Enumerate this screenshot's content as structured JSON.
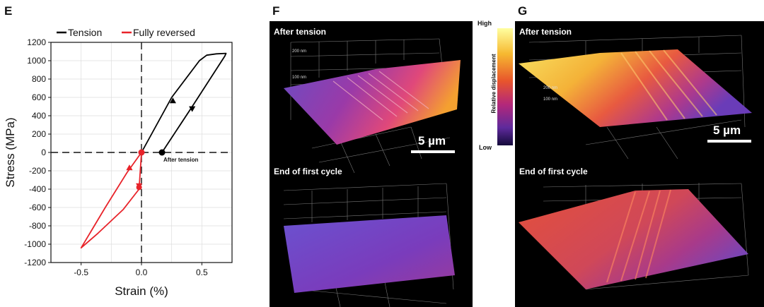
{
  "panels": {
    "E": {
      "label": "E",
      "chart_data": {
        "type": "line",
        "xlabel": "Strain (%)",
        "ylabel": "Stress (MPa)",
        "xlim": [
          -0.75,
          0.75
        ],
        "ylim": [
          -1200,
          1200
        ],
        "x_ticks": [
          -0.5,
          0.0,
          0.5
        ],
        "x_tick_labels": [
          "-0.5",
          "0.0",
          "0.5"
        ],
        "y_ticks": [
          -1200,
          -1000,
          -800,
          -600,
          -400,
          -200,
          0,
          200,
          400,
          600,
          800,
          1000,
          1200
        ],
        "y_tick_labels": [
          "-1200",
          "-1000",
          "-800",
          "-600",
          "-400",
          "-200",
          "0",
          "200",
          "400",
          "600",
          "800",
          "1000",
          "1200"
        ],
        "grid": true,
        "legend_position": "top",
        "series": [
          {
            "name": "Tension",
            "color": "#000000",
            "x": [
              0.0,
              0.25,
              0.48,
              0.54,
              0.62,
              0.7,
              0.69,
              0.42,
              0.17
            ],
            "y": [
              0,
              600,
              1000,
              1060,
              1075,
              1080,
              1050,
              500,
              0
            ]
          },
          {
            "name": "Fully reversed",
            "color": "#e8232a",
            "x": [
              0.0,
              -0.12,
              -0.3,
              -0.5,
              -0.36,
              -0.15,
              -0.02,
              0.0
            ],
            "y": [
              0,
              -220,
              -600,
              -1040,
              -880,
              -620,
              -400,
              0
            ]
          }
        ],
        "annotations": [
          {
            "text": "After tension",
            "x": 0.17,
            "y": 0
          }
        ]
      }
    },
    "F": {
      "label": "F",
      "top_title": "After tension",
      "bottom_title": "End of first cycle",
      "scale": "5 µm",
      "nm_labels": [
        "200 nm",
        "100 nm"
      ]
    },
    "G": {
      "label": "G",
      "top_title": "After tension",
      "bottom_title": "End of first cycle",
      "scale": "5 µm",
      "nm_labels": [
        "200 nm",
        "100 nm"
      ]
    },
    "colorbar": {
      "high": "High",
      "low": "Low",
      "title": "Relative displacement"
    }
  }
}
